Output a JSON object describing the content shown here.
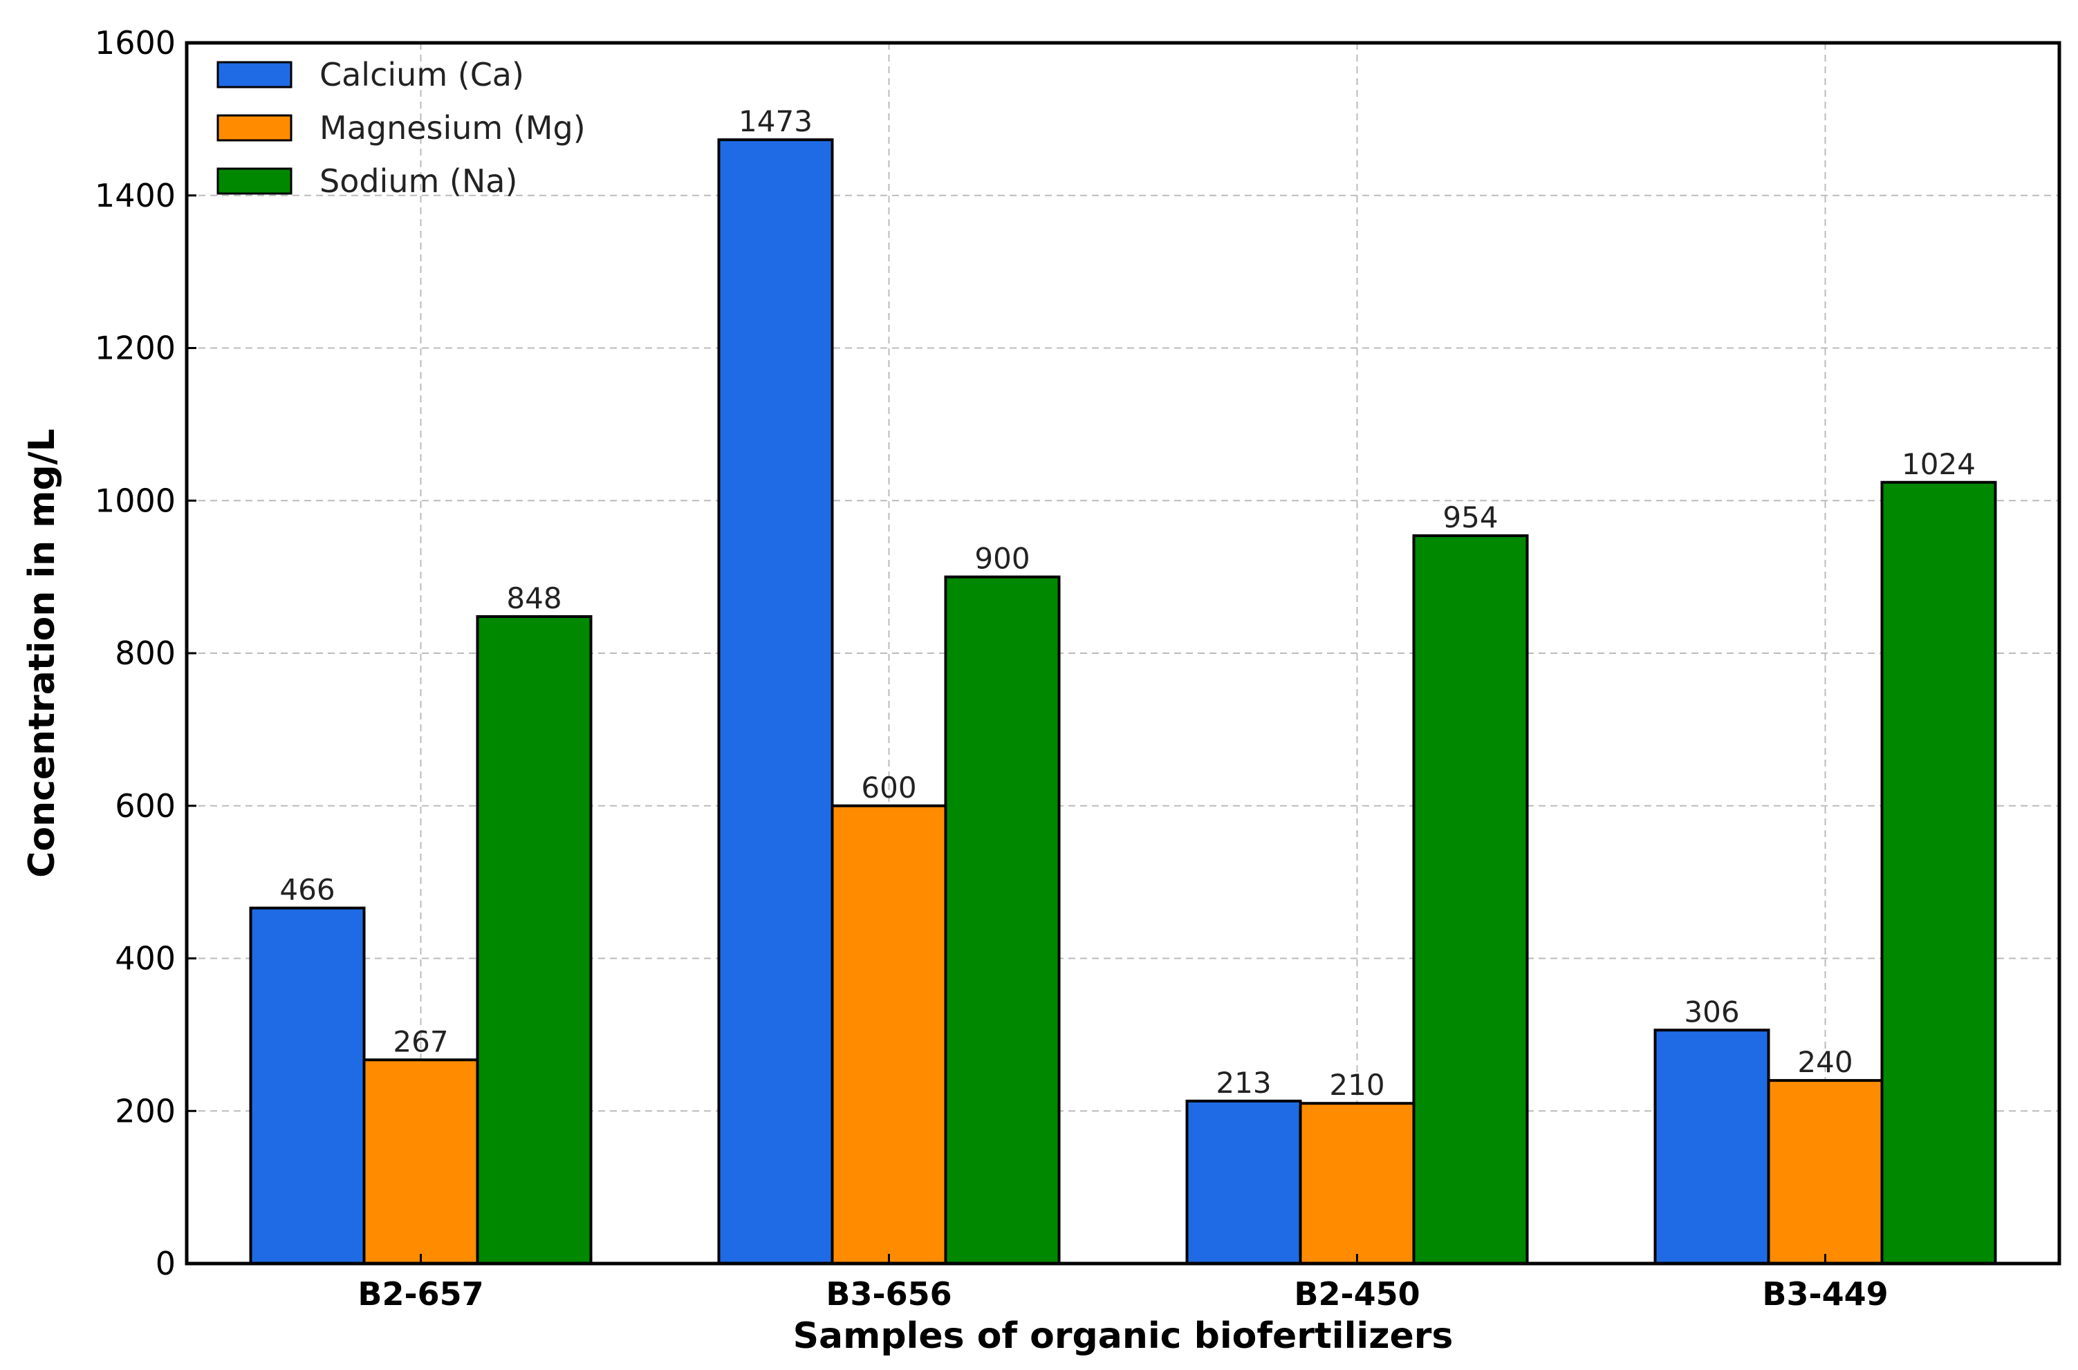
{
  "chart_data": {
    "type": "bar",
    "title": "",
    "xlabel": "Samples of organic biofertilizers",
    "ylabel": "Concentration in mg/L",
    "ylim": [
      0,
      1600
    ],
    "yticks": [
      0,
      200,
      400,
      600,
      800,
      1000,
      1200,
      1400,
      1600
    ],
    "grid": true,
    "legend_position": "top-left",
    "categories": [
      "B2-657",
      "B3-656",
      "B2-450",
      "B3-449"
    ],
    "series": [
      {
        "name": "Calcium (Ca)",
        "color": "#1f6be5",
        "values": [
          466,
          1473,
          213,
          306
        ]
      },
      {
        "name": "Magnesium (Mg)",
        "color": "#ff8c00",
        "values": [
          267,
          600,
          210,
          240
        ]
      },
      {
        "name": "Sodium (Na)",
        "color": "#008800",
        "values": [
          848,
          900,
          954,
          1024
        ]
      }
    ]
  }
}
